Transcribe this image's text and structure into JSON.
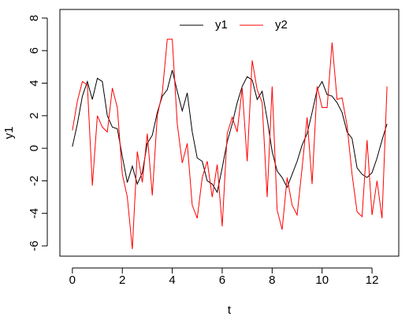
{
  "chart_data": {
    "type": "line",
    "x_label": "t",
    "y_label": "y1",
    "x": [
      0,
      0.2,
      0.4,
      0.6,
      0.8,
      1.0,
      1.2,
      1.4,
      1.6,
      1.8,
      2.0,
      2.2,
      2.4,
      2.6,
      2.8,
      3.0,
      3.2,
      3.4,
      3.6,
      3.8,
      4.0,
      4.2,
      4.4,
      4.6,
      4.8,
      5.0,
      5.2,
      5.4,
      5.6,
      5.8,
      6.0,
      6.2,
      6.4,
      6.6,
      6.8,
      7.0,
      7.2,
      7.4,
      7.6,
      7.8,
      8.0,
      8.2,
      8.4,
      8.6,
      8.8,
      9.0,
      9.2,
      9.4,
      9.6,
      9.8,
      10.0,
      10.2,
      10.4,
      10.6,
      10.8,
      11.0,
      11.2,
      11.4,
      11.6,
      11.8,
      12.0,
      12.2,
      12.4,
      12.6
    ],
    "series": [
      {
        "name": "y1",
        "color": "#000000",
        "values": [
          0.1,
          1.5,
          3.2,
          4.1,
          3.0,
          4.3,
          4.1,
          2.0,
          1.3,
          1.2,
          -0.5,
          -2.1,
          -1.1,
          -2.2,
          -1.5,
          0.3,
          0.8,
          2.2,
          3.2,
          3.6,
          4.8,
          3.5,
          2.3,
          3.4,
          1.0,
          -0.6,
          -0.8,
          -2.0,
          -2.2,
          -2.7,
          -1.2,
          0.4,
          1.5,
          2.8,
          3.8,
          4.4,
          4.2,
          3.0,
          3.5,
          1.8,
          -0.2,
          -1.4,
          -1.8,
          -2.4,
          -1.6,
          -0.8,
          0.2,
          0.9,
          2.2,
          3.6,
          4.1,
          3.3,
          3.2,
          2.8,
          2.2,
          1.0,
          0.6,
          -1.2,
          -1.6,
          -1.8,
          -1.5,
          -0.6,
          0.5,
          1.5
        ]
      },
      {
        "name": "y2",
        "color": "#ff0000",
        "values": [
          1.1,
          2.9,
          4.1,
          3.9,
          -2.3,
          2.0,
          1.3,
          1.0,
          3.7,
          2.5,
          -1.6,
          -3.0,
          -6.2,
          -0.2,
          -2.1,
          0.9,
          -2.9,
          2.0,
          3.4,
          6.7,
          6.7,
          1.5,
          -0.9,
          0.3,
          -3.5,
          -4.3,
          -1.8,
          -0.8,
          -3.0,
          -1.0,
          -4.8,
          0.9,
          1.9,
          1.0,
          3.7,
          -0.8,
          5.4,
          3.6,
          2.8,
          -3.0,
          3.8,
          -3.8,
          -5.0,
          -1.8,
          -3.5,
          -4.1,
          -1.2,
          1.9,
          -2.2,
          3.8,
          2.5,
          2.5,
          6.5,
          3.0,
          3.1,
          1.4,
          -1.6,
          -3.9,
          -4.2,
          0.5,
          -4.1,
          -2.0,
          -4.3,
          3.8
        ]
      }
    ],
    "xlim": [
      -0.5,
      13.07
    ],
    "ylim": [
      -6.63,
      8.53
    ],
    "xticks": [
      0,
      2,
      4,
      6,
      8,
      10,
      12
    ],
    "yticks": [
      -6,
      -4,
      -2,
      0,
      2,
      4,
      6,
      8
    ],
    "legend": "top"
  }
}
